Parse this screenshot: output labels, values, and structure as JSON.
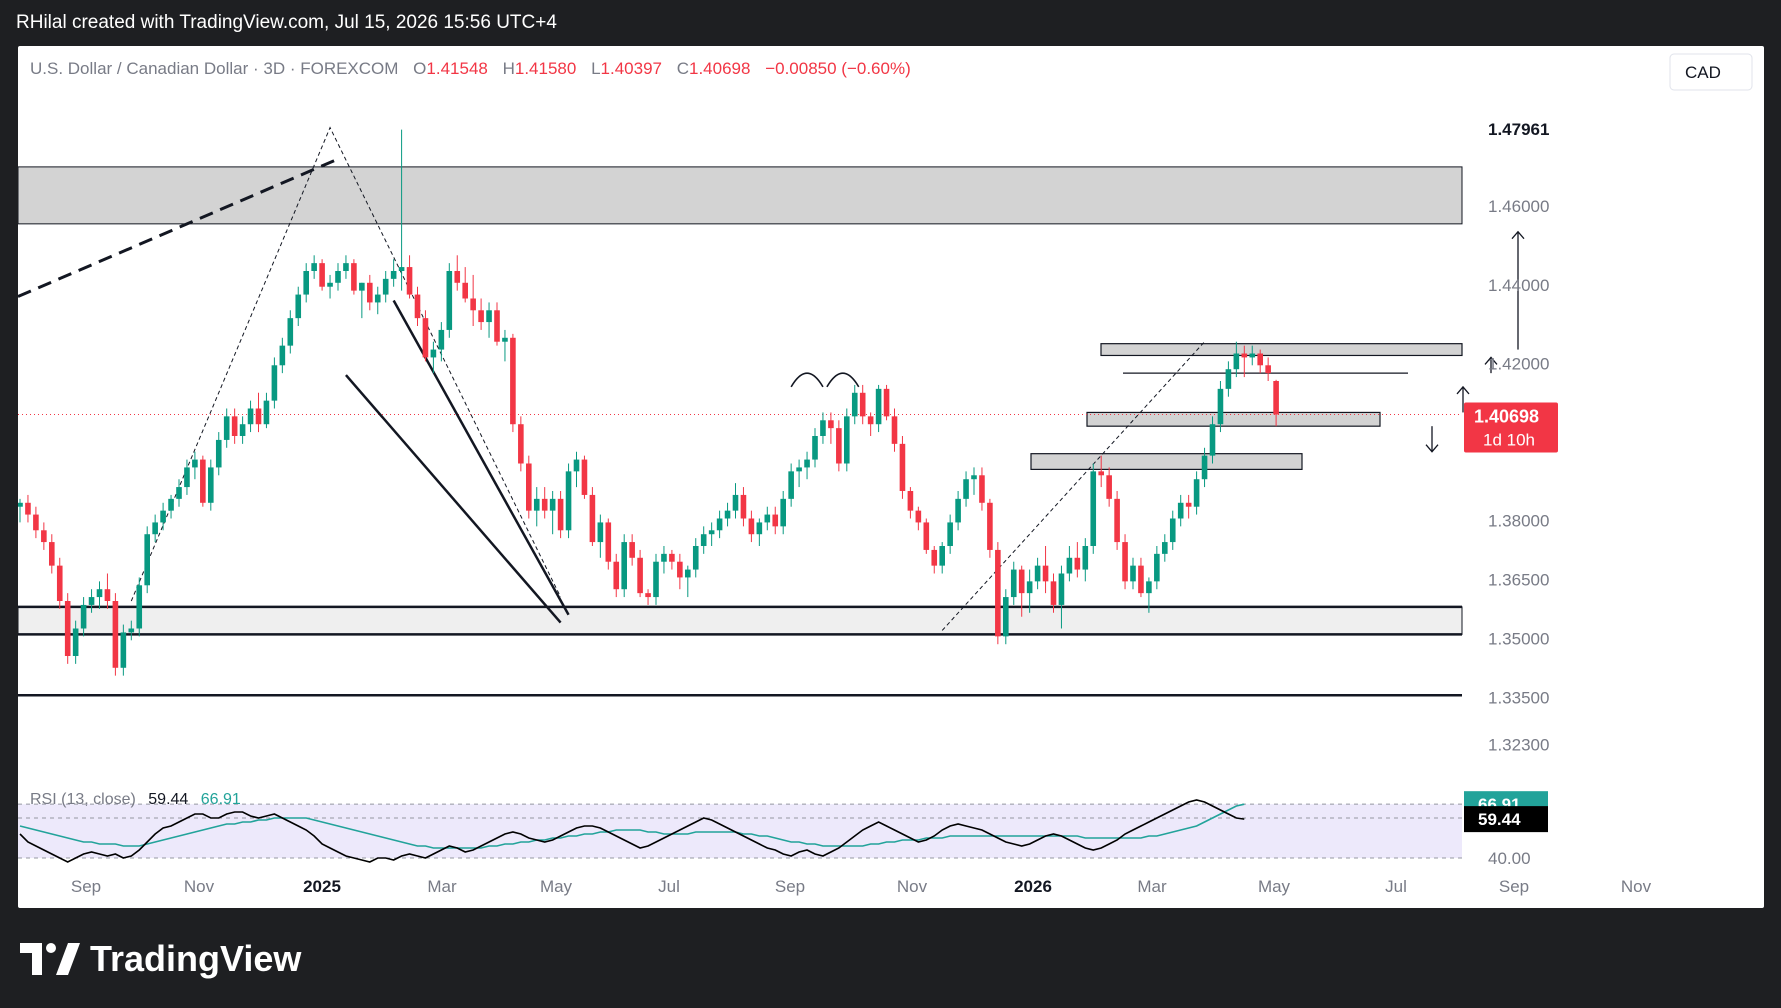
{
  "header": {
    "caption": "RHilal created with TradingView.com, Jul 15, 2026 15:56 UTC+4"
  },
  "legend": {
    "symbol": "U.S. Dollar / Canadian Dollar · 3D · FOREXCOM",
    "o_label": "O",
    "o_value": "1.41548",
    "h_label": "H",
    "h_value": "1.41580",
    "l_label": "L",
    "l_value": "1.40397",
    "c_label": "C",
    "c_value": "1.40698",
    "change": "−0.00850 (−0.60%)"
  },
  "currency_button": "CAD",
  "price_tag": {
    "price": "1.40698",
    "countdown": "1d 10h",
    "color": "#f23645"
  },
  "rsi_legend": {
    "label": "RSI (13, close)",
    "rsi": "59.44",
    "ma": "66.91"
  },
  "rsi_tags": {
    "ma": "66.91",
    "rsi": "59.44",
    "level": "40.00"
  },
  "branding": {
    "logo_text": "TradingView"
  },
  "colors": {
    "up": "#089981",
    "down": "#f23645",
    "background": "#ffffff",
    "zone": "#d3d3d3",
    "rsi_line": "#000000",
    "rsi_ma": "#22a39a",
    "rsi_band": "#ede9fb"
  },
  "chart_data": {
    "type": "candlestick",
    "ylim": [
      1.3175,
      1.4855
    ],
    "y_ticks": [
      "1.47961",
      "1.46000",
      "1.44000",
      "1.42000",
      "1.38000",
      "1.36500",
      "1.35000",
      "1.33500",
      "1.32300"
    ],
    "x_ticks": [
      "Sep",
      "Nov",
      "2025",
      "Mar",
      "May",
      "Jul",
      "Sep",
      "Nov",
      "2026",
      "Mar",
      "May",
      "Jul",
      "Sep",
      "Nov"
    ],
    "x_ticks_bold": [
      "2025",
      "2026"
    ],
    "candles": [
      [
        1.3835,
        1.3855,
        1.3795,
        1.3845
      ],
      [
        1.3845,
        1.3865,
        1.3795,
        1.3815
      ],
      [
        1.3815,
        1.3835,
        1.3755,
        1.3775
      ],
      [
        1.3775,
        1.3795,
        1.3725,
        1.3745
      ],
      [
        1.3745,
        1.3765,
        1.3665,
        1.3685
      ],
      [
        1.3685,
        1.3705,
        1.3575,
        1.3595
      ],
      [
        1.3595,
        1.3615,
        1.3435,
        1.3455
      ],
      [
        1.3455,
        1.3545,
        1.3435,
        1.3525
      ],
      [
        1.3525,
        1.3605,
        1.3505,
        1.3585
      ],
      [
        1.3585,
        1.3625,
        1.3565,
        1.3605
      ],
      [
        1.3605,
        1.3645,
        1.3575,
        1.3625
      ],
      [
        1.3625,
        1.3665,
        1.3575,
        1.3595
      ],
      [
        1.3595,
        1.3615,
        1.3405,
        1.3425
      ],
      [
        1.3425,
        1.3535,
        1.3405,
        1.3515
      ],
      [
        1.3515,
        1.3545,
        1.3495,
        1.3525
      ],
      [
        1.3525,
        1.3655,
        1.3505,
        1.3635
      ],
      [
        1.3635,
        1.3785,
        1.3615,
        1.3765
      ],
      [
        1.3765,
        1.3815,
        1.3745,
        1.3795
      ],
      [
        1.3795,
        1.3845,
        1.3775,
        1.3825
      ],
      [
        1.3825,
        1.3865,
        1.3805,
        1.3855
      ],
      [
        1.3855,
        1.3905,
        1.3835,
        1.3885
      ],
      [
        1.3885,
        1.3955,
        1.3865,
        1.3935
      ],
      [
        1.3935,
        1.3975,
        1.3905,
        1.3955
      ],
      [
        1.3955,
        1.3965,
        1.3835,
        1.3845
      ],
      [
        1.3845,
        1.3955,
        1.3825,
        1.3935
      ],
      [
        1.3935,
        1.4025,
        1.3915,
        1.4005
      ],
      [
        1.4005,
        1.4085,
        1.3985,
        1.4065
      ],
      [
        1.4065,
        1.4085,
        1.3995,
        1.4015
      ],
      [
        1.4015,
        1.4065,
        1.3995,
        1.4045
      ],
      [
        1.4045,
        1.4105,
        1.4025,
        1.4085
      ],
      [
        1.4085,
        1.4125,
        1.4025,
        1.4045
      ],
      [
        1.4045,
        1.4125,
        1.4035,
        1.4105
      ],
      [
        1.4105,
        1.4215,
        1.4085,
        1.4195
      ],
      [
        1.4195,
        1.4265,
        1.4175,
        1.4245
      ],
      [
        1.4245,
        1.4335,
        1.4225,
        1.4315
      ],
      [
        1.4315,
        1.4395,
        1.4295,
        1.4375
      ],
      [
        1.4375,
        1.4455,
        1.4355,
        1.4435
      ],
      [
        1.4435,
        1.4475,
        1.4415,
        1.4455
      ],
      [
        1.4455,
        1.4465,
        1.4385,
        1.4395
      ],
      [
        1.4395,
        1.4425,
        1.4365,
        1.4405
      ],
      [
        1.4405,
        1.4455,
        1.4385,
        1.4435
      ],
      [
        1.4435,
        1.4475,
        1.4415,
        1.4455
      ],
      [
        1.4455,
        1.4465,
        1.4375,
        1.4385
      ],
      [
        1.4385,
        1.4405,
        1.4315,
        1.4405
      ],
      [
        1.4405,
        1.4425,
        1.4335,
        1.4355
      ],
      [
        1.4355,
        1.4395,
        1.4325,
        1.4375
      ],
      [
        1.4375,
        1.4435,
        1.4355,
        1.4415
      ],
      [
        1.4415,
        1.4465,
        1.4395,
        1.4435
      ],
      [
        1.4435,
        1.4795,
        1.4385,
        1.4445
      ],
      [
        1.4445,
        1.4475,
        1.4365,
        1.4375
      ],
      [
        1.4375,
        1.4395,
        1.4295,
        1.4315
      ],
      [
        1.4315,
        1.4335,
        1.4205,
        1.4215
      ],
      [
        1.4215,
        1.4255,
        1.4175,
        1.4235
      ],
      [
        1.4235,
        1.4305,
        1.4205,
        1.4285
      ],
      [
        1.4285,
        1.4455,
        1.4265,
        1.4435
      ],
      [
        1.4435,
        1.4475,
        1.4385,
        1.4405
      ],
      [
        1.4405,
        1.4445,
        1.4355,
        1.4365
      ],
      [
        1.4365,
        1.4425,
        1.4295,
        1.4335
      ],
      [
        1.4335,
        1.4365,
        1.4285,
        1.4305
      ],
      [
        1.4305,
        1.4355,
        1.4265,
        1.4335
      ],
      [
        1.4335,
        1.4355,
        1.4245,
        1.4255
      ],
      [
        1.4255,
        1.4285,
        1.4205,
        1.4265
      ],
      [
        1.4265,
        1.4275,
        1.4025,
        1.4045
      ],
      [
        1.4045,
        1.4065,
        1.3925,
        1.3945
      ],
      [
        1.3945,
        1.3965,
        1.3805,
        1.3825
      ],
      [
        1.3825,
        1.3885,
        1.3785,
        1.3855
      ],
      [
        1.3855,
        1.3885,
        1.3805,
        1.3825
      ],
      [
        1.3825,
        1.3875,
        1.3765,
        1.3855
      ],
      [
        1.3855,
        1.3875,
        1.3755,
        1.3775
      ],
      [
        1.3775,
        1.3945,
        1.3755,
        1.3925
      ],
      [
        1.3925,
        1.3975,
        1.3885,
        1.3955
      ],
      [
        1.3955,
        1.3965,
        1.3855,
        1.3865
      ],
      [
        1.3865,
        1.3885,
        1.3735,
        1.3745
      ],
      [
        1.3745,
        1.3815,
        1.3705,
        1.3795
      ],
      [
        1.3795,
        1.3805,
        1.3675,
        1.3695
      ],
      [
        1.3695,
        1.3715,
        1.3605,
        1.3625
      ],
      [
        1.3625,
        1.3765,
        1.3605,
        1.3745
      ],
      [
        1.3745,
        1.3765,
        1.3685,
        1.3705
      ],
      [
        1.3705,
        1.3725,
        1.3605,
        1.3615
      ],
      [
        1.3615,
        1.3625,
        1.3585,
        1.3605
      ],
      [
        1.3605,
        1.3715,
        1.3585,
        1.3695
      ],
      [
        1.3695,
        1.3735,
        1.3665,
        1.3715
      ],
      [
        1.3715,
        1.3725,
        1.3675,
        1.3695
      ],
      [
        1.3695,
        1.3715,
        1.3625,
        1.3655
      ],
      [
        1.3655,
        1.3685,
        1.3605,
        1.3675
      ],
      [
        1.3675,
        1.3755,
        1.3655,
        1.3735
      ],
      [
        1.3735,
        1.3785,
        1.3715,
        1.3765
      ],
      [
        1.3765,
        1.3795,
        1.3735,
        1.3775
      ],
      [
        1.3775,
        1.3825,
        1.3755,
        1.3805
      ],
      [
        1.3805,
        1.3845,
        1.3785,
        1.3825
      ],
      [
        1.3825,
        1.3895,
        1.3805,
        1.3865
      ],
      [
        1.3865,
        1.3885,
        1.3785,
        1.3805
      ],
      [
        1.3805,
        1.3825,
        1.3745,
        1.3765
      ],
      [
        1.3765,
        1.3805,
        1.3735,
        1.3795
      ],
      [
        1.3795,
        1.3835,
        1.3775,
        1.3815
      ],
      [
        1.3815,
        1.3835,
        1.3765,
        1.3785
      ],
      [
        1.3785,
        1.3875,
        1.3765,
        1.3855
      ],
      [
        1.3855,
        1.3945,
        1.3835,
        1.3925
      ],
      [
        1.3925,
        1.3955,
        1.3885,
        1.3935
      ],
      [
        1.3935,
        1.3975,
        1.3905,
        1.3955
      ],
      [
        1.3955,
        1.4035,
        1.3935,
        1.4015
      ],
      [
        1.4015,
        1.4075,
        1.3995,
        1.4055
      ],
      [
        1.4055,
        1.4075,
        1.3995,
        1.4035
      ],
      [
        1.4035,
        1.4055,
        1.3925,
        1.3945
      ],
      [
        1.3945,
        1.4085,
        1.3925,
        1.4065
      ],
      [
        1.4065,
        1.4145,
        1.4045,
        1.4125
      ],
      [
        1.4125,
        1.4145,
        1.4045,
        1.4065
      ],
      [
        1.4065,
        1.4075,
        1.4015,
        1.4045
      ],
      [
        1.4045,
        1.4145,
        1.4025,
        1.4135
      ],
      [
        1.4135,
        1.4145,
        1.4055,
        1.4065
      ],
      [
        1.4065,
        1.4085,
        1.3975,
        1.3995
      ],
      [
        1.3995,
        1.4015,
        1.3855,
        1.3875
      ],
      [
        1.3875,
        1.3885,
        1.3805,
        1.3825
      ],
      [
        1.3825,
        1.3835,
        1.3775,
        1.3795
      ],
      [
        1.3795,
        1.3805,
        1.3715,
        1.3725
      ],
      [
        1.3725,
        1.3735,
        1.3665,
        1.3685
      ],
      [
        1.3685,
        1.3745,
        1.3665,
        1.3735
      ],
      [
        1.3735,
        1.3815,
        1.3715,
        1.3795
      ],
      [
        1.3795,
        1.3875,
        1.3775,
        1.3855
      ],
      [
        1.3855,
        1.3925,
        1.3835,
        1.3905
      ],
      [
        1.3905,
        1.3935,
        1.3865,
        1.3915
      ],
      [
        1.3915,
        1.3935,
        1.3825,
        1.3845
      ],
      [
        1.3845,
        1.3855,
        1.3705,
        1.3725
      ],
      [
        1.3725,
        1.3745,
        1.3485,
        1.3505
      ],
      [
        1.3505,
        1.3625,
        1.3485,
        1.3605
      ],
      [
        1.3605,
        1.3695,
        1.3585,
        1.3675
      ],
      [
        1.3675,
        1.3685,
        1.3555,
        1.3615
      ],
      [
        1.3615,
        1.3675,
        1.3565,
        1.3645
      ],
      [
        1.3645,
        1.3705,
        1.3625,
        1.3685
      ],
      [
        1.3685,
        1.3735,
        1.3615,
        1.3645
      ],
      [
        1.3645,
        1.3665,
        1.3565,
        1.3585
      ],
      [
        1.3585,
        1.3685,
        1.3525,
        1.3665
      ],
      [
        1.3665,
        1.3735,
        1.3645,
        1.3705
      ],
      [
        1.3705,
        1.3745,
        1.3655,
        1.3675
      ],
      [
        1.3675,
        1.3755,
        1.3645,
        1.3735
      ],
      [
        1.3735,
        1.3945,
        1.3715,
        1.3925
      ],
      [
        1.3925,
        1.3965,
        1.3885,
        1.3915
      ],
      [
        1.3915,
        1.3935,
        1.3835,
        1.3855
      ],
      [
        1.3855,
        1.3875,
        1.3725,
        1.3745
      ],
      [
        1.3745,
        1.3765,
        1.3625,
        1.3645
      ],
      [
        1.3645,
        1.3705,
        1.3625,
        1.3685
      ],
      [
        1.3685,
        1.3705,
        1.3605,
        1.3615
      ],
      [
        1.3615,
        1.3655,
        1.3565,
        1.3645
      ],
      [
        1.3645,
        1.3735,
        1.3625,
        1.3715
      ],
      [
        1.3715,
        1.3765,
        1.3695,
        1.3745
      ],
      [
        1.3745,
        1.3825,
        1.3725,
        1.3805
      ],
      [
        1.3805,
        1.3865,
        1.3785,
        1.3845
      ],
      [
        1.3845,
        1.3865,
        1.3805,
        1.3835
      ],
      [
        1.3835,
        1.3925,
        1.3815,
        1.3905
      ],
      [
        1.3905,
        1.3985,
        1.3885,
        1.3965
      ],
      [
        1.3965,
        1.4065,
        1.3945,
        1.4045
      ],
      [
        1.4045,
        1.4155,
        1.4025,
        1.4135
      ],
      [
        1.4135,
        1.4205,
        1.4115,
        1.4185
      ],
      [
        1.4185,
        1.4255,
        1.4165,
        1.4225
      ],
      [
        1.4225,
        1.4245,
        1.4165,
        1.4215
      ],
      [
        1.4215,
        1.4245,
        1.4195,
        1.4225
      ],
      [
        1.4225,
        1.4235,
        1.4175,
        1.4195
      ],
      [
        1.4195,
        1.4215,
        1.4155,
        1.4175
      ],
      [
        1.4155,
        1.4158,
        1.404,
        1.407
      ]
    ],
    "zones": [
      [
        1.4555,
        1.47
      ],
      [
        1.351,
        1.358
      ],
      [
        1.422,
        1.425
      ],
      [
        1.404,
        1.4075
      ],
      [
        1.393,
        1.397
      ]
    ],
    "levels": [
      1.358,
      1.351,
      1.3355,
      1.4175
    ],
    "current_price": 1.40698,
    "rsi": {
      "ylim": [
        20,
        80
      ],
      "band": [
        40,
        66.91
      ],
      "levels": [
        66.91,
        60,
        40
      ],
      "values": [
        52,
        48,
        46,
        44,
        42,
        40,
        38,
        40,
        42,
        43,
        42,
        41,
        42,
        40,
        41,
        44,
        48,
        52,
        55,
        56,
        58,
        60,
        62,
        62,
        60,
        60,
        62,
        63,
        63,
        61,
        60,
        61,
        62,
        60,
        58,
        56,
        54,
        51,
        47,
        45,
        43,
        41,
        40,
        39,
        38,
        40,
        40,
        39,
        41,
        42,
        41,
        40,
        42,
        44,
        46,
        45,
        43,
        44,
        46,
        48,
        50,
        52,
        53,
        52,
        50,
        49,
        48,
        49,
        51,
        53,
        55,
        56,
        56,
        55,
        53,
        51,
        49,
        47,
        45,
        46,
        48,
        50,
        52,
        54,
        56,
        58,
        60,
        59,
        57,
        55,
        53,
        51,
        49,
        47,
        45,
        44,
        42,
        41,
        43,
        44,
        42,
        41,
        43,
        45,
        48,
        51,
        54,
        56,
        58,
        56,
        54,
        52,
        50,
        48,
        49,
        51,
        54,
        56,
        57,
        56,
        55,
        54,
        52,
        50,
        48,
        47,
        46,
        47,
        49,
        51,
        52,
        51,
        49,
        47,
        45,
        44,
        45,
        47,
        49,
        52,
        54,
        56,
        58,
        60,
        62,
        64,
        66,
        68,
        69,
        68,
        66,
        64,
        62,
        60,
        59.44
      ],
      "ma_values": [
        56,
        55,
        54,
        53,
        52,
        51,
        50,
        49,
        48,
        48,
        47,
        47,
        47,
        46,
        46,
        46,
        47,
        48,
        49,
        50,
        51,
        52,
        53,
        54,
        55,
        56,
        57,
        57,
        58,
        58,
        59,
        59,
        60,
        60,
        60,
        60,
        60,
        59,
        58,
        57,
        56,
        55,
        54,
        53,
        52,
        51,
        50,
        49,
        48,
        47,
        46,
        46,
        45,
        45,
        45,
        45,
        45,
        45,
        45,
        46,
        46,
        47,
        47,
        48,
        48,
        49,
        49,
        50,
        50,
        51,
        51,
        52,
        52,
        53,
        53,
        54,
        54,
        54,
        54,
        53,
        53,
        52,
        52,
        52,
        52,
        53,
        53,
        53,
        53,
        53,
        53,
        52,
        52,
        51,
        51,
        50,
        49,
        48,
        48,
        47,
        47,
        46,
        46,
        46,
        46,
        46,
        46,
        47,
        47,
        48,
        48,
        49,
        49,
        49,
        50,
        50,
        50,
        51,
        51,
        51,
        51,
        51,
        51,
        51,
        51,
        51,
        51,
        51,
        51,
        51,
        51,
        51,
        51,
        51,
        50,
        50,
        50,
        50,
        50,
        50,
        50,
        50,
        51,
        51,
        52,
        53,
        54,
        55,
        56,
        58,
        60,
        62,
        64,
        66,
        66.91
      ]
    }
  }
}
